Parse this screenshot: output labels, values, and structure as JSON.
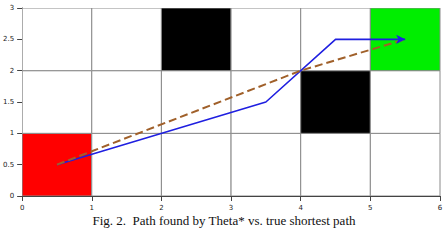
{
  "chart_data": {
    "type": "line",
    "title": "Fig. 2.  Path found by Theta* vs. true shortest path",
    "xlim": [
      0,
      6
    ],
    "ylim": [
      0,
      3
    ],
    "xticks": [
      0,
      1,
      2,
      3,
      4,
      5,
      6
    ],
    "yticks": [
      0,
      0.5,
      1,
      1.5,
      2,
      2.5,
      3
    ],
    "grid": false,
    "cell_size": 1,
    "cells": [
      {
        "x": 0,
        "y": 0,
        "color": "#ff0000"
      },
      {
        "x": 1,
        "y": 0,
        "color": "#ffffff"
      },
      {
        "x": 2,
        "y": 0,
        "color": "#ffffff"
      },
      {
        "x": 3,
        "y": 0,
        "color": "#ffffff"
      },
      {
        "x": 4,
        "y": 0,
        "color": "#ffffff"
      },
      {
        "x": 5,
        "y": 0,
        "color": "#ffffff"
      },
      {
        "x": 0,
        "y": 1,
        "color": "#ffffff"
      },
      {
        "x": 1,
        "y": 1,
        "color": "#ffffff"
      },
      {
        "x": 2,
        "y": 1,
        "color": "#ffffff"
      },
      {
        "x": 3,
        "y": 1,
        "color": "#ffffff"
      },
      {
        "x": 4,
        "y": 1,
        "color": "#000000"
      },
      {
        "x": 5,
        "y": 1,
        "color": "#ffffff"
      },
      {
        "x": 0,
        "y": 2,
        "color": "#ffffff"
      },
      {
        "x": 1,
        "y": 2,
        "color": "#ffffff"
      },
      {
        "x": 2,
        "y": 2,
        "color": "#000000"
      },
      {
        "x": 3,
        "y": 2,
        "color": "#ffffff"
      },
      {
        "x": 4,
        "y": 2,
        "color": "#ffffff"
      },
      {
        "x": 5,
        "y": 2,
        "color": "#00ee00"
      }
    ],
    "series": [
      {
        "color": "#1f1fe0",
        "line_style": "solid",
        "marker": "arrow",
        "x": [
          0.5,
          3.5,
          4.5,
          5.5
        ],
        "values": [
          0.5,
          1.5,
          2.5,
          2.5
        ]
      },
      {
        "color": "#a0602a",
        "line_style": "dashed",
        "marker": "none",
        "x": [
          0.5,
          4,
          5.5
        ],
        "values": [
          0.5,
          2,
          2.5
        ]
      }
    ]
  }
}
